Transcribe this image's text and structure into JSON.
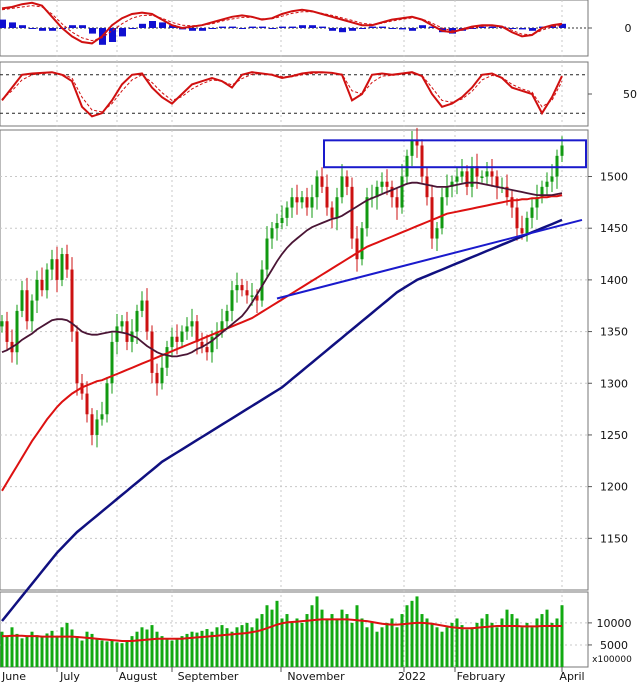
{
  "chart_data": [
    {
      "panel": "macd",
      "type": "bar",
      "y_tick_labels": [
        "0"
      ],
      "ylim": [
        -1,
        1
      ],
      "histogram_color": "#1010d0",
      "signal_color": "#d01010",
      "x": [
        0,
        10,
        20,
        30,
        40,
        50,
        60,
        70,
        80,
        90,
        100,
        110,
        120,
        130,
        140,
        150,
        160,
        170,
        180,
        190,
        200,
        210,
        220,
        230,
        240,
        250,
        260,
        270,
        280,
        290,
        300,
        310,
        320,
        330,
        340,
        350,
        360,
        370,
        380,
        390,
        400,
        410,
        420,
        430,
        440,
        450,
        460,
        470,
        480,
        490,
        500,
        510,
        520,
        530,
        540,
        550,
        560
      ],
      "histogram": [
        0.3,
        0.2,
        0.1,
        0,
        -0.1,
        -0.1,
        0,
        0.1,
        0.1,
        -0.2,
        -0.6,
        -0.5,
        -0.3,
        0,
        0.15,
        0.25,
        0.2,
        0.1,
        -0.05,
        -0.1,
        -0.1,
        0,
        0.05,
        0.05,
        0,
        0.05,
        0.05,
        0,
        0.05,
        0.05,
        0.1,
        0.1,
        0.05,
        -0.1,
        -0.15,
        -0.1,
        0,
        0.05,
        0.05,
        0,
        -0.05,
        -0.1,
        0.1,
        0.05,
        -0.15,
        -0.2,
        -0.1,
        0,
        0.05,
        0.05,
        0.05,
        0,
        -0.05,
        -0.1,
        0.05,
        0.1,
        0.15
      ],
      "macd_line": [
        0.7,
        0.75,
        0.85,
        0.9,
        0.8,
        0.4,
        0,
        -0.3,
        -0.5,
        -0.55,
        -0.3,
        0.1,
        0.35,
        0.5,
        0.55,
        0.5,
        0.3,
        0.1,
        0,
        0.05,
        0.1,
        0.2,
        0.3,
        0.4,
        0.45,
        0.4,
        0.3,
        0.35,
        0.5,
        0.6,
        0.65,
        0.6,
        0.5,
        0.4,
        0.3,
        0.2,
        0.1,
        0.1,
        0.2,
        0.3,
        0.35,
        0.4,
        0.3,
        0.1,
        -0.1,
        -0.15,
        -0.05,
        0.05,
        0.1,
        0.1,
        0.05,
        -0.15,
        -0.3,
        -0.25,
        0,
        0.1,
        0.15
      ],
      "signal_line": [
        0.65,
        0.7,
        0.75,
        0.8,
        0.75,
        0.5,
        0.15,
        -0.15,
        -0.35,
        -0.45,
        -0.35,
        -0.1,
        0.15,
        0.35,
        0.45,
        0.45,
        0.35,
        0.2,
        0.1,
        0.08,
        0.1,
        0.15,
        0.25,
        0.32,
        0.38,
        0.38,
        0.33,
        0.33,
        0.42,
        0.52,
        0.58,
        0.58,
        0.52,
        0.45,
        0.36,
        0.27,
        0.17,
        0.13,
        0.17,
        0.25,
        0.31,
        0.36,
        0.32,
        0.18,
        0,
        -0.1,
        -0.08,
        0,
        0.06,
        0.08,
        0.06,
        -0.08,
        -0.22,
        -0.24,
        -0.08,
        0.04,
        0.1
      ]
    },
    {
      "panel": "oscillator",
      "type": "line",
      "y_tick_labels": [
        "50"
      ],
      "ylim": [
        0,
        100
      ],
      "reference_levels": [
        80,
        20
      ],
      "series_color": "#d01010",
      "x": [
        0,
        10,
        20,
        30,
        40,
        50,
        60,
        70,
        80,
        90,
        100,
        110,
        120,
        130,
        140,
        150,
        160,
        170,
        180,
        190,
        200,
        210,
        220,
        230,
        240,
        250,
        260,
        270,
        280,
        290,
        300,
        310,
        320,
        330,
        340,
        350,
        360,
        370,
        380,
        390,
        400,
        410,
        420,
        430,
        440,
        450,
        460,
        470,
        480,
        490,
        500,
        510,
        520,
        530,
        540,
        550,
        560
      ],
      "values": [
        40,
        60,
        80,
        82,
        83,
        84,
        80,
        70,
        30,
        15,
        20,
        40,
        65,
        80,
        82,
        60,
        45,
        35,
        50,
        65,
        70,
        75,
        70,
        60,
        80,
        84,
        82,
        80,
        75,
        78,
        82,
        84,
        84,
        83,
        80,
        40,
        50,
        80,
        82,
        80,
        82,
        84,
        78,
        50,
        30,
        35,
        45,
        60,
        80,
        82,
        75,
        60,
        55,
        50,
        20,
        45,
        78
      ],
      "signal": [
        42,
        55,
        72,
        80,
        82,
        83,
        81,
        75,
        45,
        25,
        22,
        35,
        55,
        72,
        80,
        68,
        52,
        40,
        46,
        58,
        66,
        72,
        70,
        64,
        74,
        81,
        82,
        81,
        77,
        77,
        80,
        82,
        83,
        83,
        81,
        55,
        50,
        68,
        78,
        79,
        81,
        82,
        79,
        60,
        40,
        37,
        42,
        54,
        72,
        79,
        76,
        65,
        58,
        53,
        30,
        40,
        70
      ]
    },
    {
      "panel": "price",
      "type": "line",
      "x_tick_labels": [
        "June",
        "July",
        "August",
        "September",
        "November",
        "2022",
        "February",
        "April"
      ],
      "y_tick_labels": [
        "1500",
        "1450",
        "1400",
        "1350",
        "1300",
        "1250",
        "1200",
        "1150"
      ],
      "ylim": [
        1100,
        1545
      ],
      "colors": {
        "up": "#119911",
        "down": "#cc1111",
        "ma_short": "#4a1535",
        "ma_mid": "#dd1111",
        "ma_long": "#101080",
        "annotations": "#1a1acc"
      },
      "x": [
        0,
        5,
        10,
        15,
        20,
        25,
        30,
        35,
        40,
        45,
        50,
        55,
        60,
        65,
        70,
        75,
        80,
        85,
        90,
        95,
        100,
        105,
        110,
        115,
        120,
        125,
        130,
        135,
        140,
        145,
        150,
        155,
        160,
        165,
        170,
        175,
        180,
        185,
        190,
        195,
        200,
        205,
        210,
        215,
        220,
        225,
        230,
        235,
        240,
        245,
        250,
        255,
        260,
        265,
        270,
        275,
        280,
        285,
        290,
        295,
        300,
        305,
        310,
        315,
        320,
        325,
        330,
        335,
        340,
        345,
        350,
        355,
        360,
        365,
        370,
        375,
        380,
        385,
        390,
        395,
        400,
        405,
        410,
        415,
        420,
        425,
        430,
        435,
        440,
        445,
        450,
        455,
        460,
        465,
        470,
        475,
        480,
        485,
        490,
        495,
        500,
        505,
        510,
        515,
        520,
        525,
        530,
        535,
        540,
        545,
        550,
        555,
        560
      ],
      "close": [
        1360,
        1340,
        1330,
        1370,
        1390,
        1360,
        1380,
        1400,
        1390,
        1410,
        1420,
        1400,
        1425,
        1410,
        1350,
        1300,
        1290,
        1270,
        1250,
        1265,
        1270,
        1300,
        1340,
        1355,
        1360,
        1340,
        1350,
        1370,
        1380,
        1350,
        1310,
        1300,
        1315,
        1335,
        1345,
        1340,
        1350,
        1355,
        1360,
        1340,
        1335,
        1330,
        1345,
        1350,
        1360,
        1370,
        1390,
        1395,
        1390,
        1385,
        1385,
        1380,
        1410,
        1440,
        1450,
        1455,
        1460,
        1470,
        1480,
        1475,
        1480,
        1470,
        1480,
        1500,
        1490,
        1470,
        1460,
        1480,
        1500,
        1490,
        1440,
        1420,
        1450,
        1480,
        1480,
        1490,
        1495,
        1490,
        1480,
        1470,
        1500,
        1520,
        1535,
        1530,
        1500,
        1480,
        1440,
        1450,
        1480,
        1490,
        1495,
        1500,
        1505,
        1490,
        1510,
        1500,
        1500,
        1505,
        1500,
        1490,
        1490,
        1480,
        1470,
        1450,
        1445,
        1460,
        1470,
        1480,
        1490,
        1495,
        1500,
        1520,
        1530
      ],
      "ma_short": [
        1330,
        1332,
        1335,
        1338,
        1342,
        1345,
        1348,
        1352,
        1355,
        1358,
        1361,
        1362,
        1362,
        1361,
        1358,
        1354,
        1350,
        1348,
        1347,
        1347,
        1348,
        1349,
        1350,
        1350,
        1349,
        1348,
        1346,
        1344,
        1340,
        1336,
        1333,
        1330,
        1328,
        1327,
        1326,
        1326,
        1327,
        1328,
        1330,
        1333,
        1335,
        1338,
        1341,
        1345,
        1349,
        1353,
        1357,
        1361,
        1365,
        1371,
        1378,
        1386,
        1394,
        1402,
        1410,
        1418,
        1425,
        1431,
        1436,
        1440,
        1444,
        1448,
        1451,
        1453,
        1455,
        1457,
        1459,
        1460,
        1462,
        1465,
        1468,
        1471,
        1474,
        1477,
        1479,
        1481,
        1483,
        1485,
        1487,
        1489,
        1491,
        1493,
        1494,
        1494,
        1493,
        1492,
        1491,
        1490,
        1490,
        1490,
        1491,
        1492,
        1493,
        1494,
        1494,
        1494,
        1493,
        1492,
        1491,
        1490,
        1489,
        1488,
        1487,
        1486,
        1485,
        1484,
        1483,
        1482,
        1482,
        1482,
        1482,
        1483,
        1484
      ],
      "ma_mid": [
        1196,
        1204,
        1212,
        1220,
        1228,
        1236,
        1244,
        1251,
        1258,
        1265,
        1271,
        1277,
        1282,
        1286,
        1290,
        1293,
        1296,
        1298,
        1300,
        1302,
        1303,
        1305,
        1307,
        1309,
        1311,
        1313,
        1315,
        1317,
        1319,
        1321,
        1323,
        1325,
        1327,
        1329,
        1331,
        1333,
        1335,
        1337,
        1339,
        1341,
        1343,
        1345,
        1347,
        1349,
        1351,
        1353,
        1355,
        1357,
        1359,
        1361,
        1363,
        1366,
        1369,
        1372,
        1375,
        1378,
        1381,
        1384,
        1387,
        1390,
        1393,
        1396,
        1399,
        1402,
        1405,
        1408,
        1411,
        1414,
        1417,
        1420,
        1423,
        1426,
        1429,
        1432,
        1434,
        1436,
        1438,
        1440,
        1442,
        1444,
        1446,
        1448,
        1450,
        1452,
        1454,
        1456,
        1458,
        1460,
        1462,
        1464,
        1465,
        1466,
        1467,
        1468,
        1469,
        1470,
        1471,
        1472,
        1473,
        1474,
        1475,
        1476,
        1477,
        1477,
        1478,
        1478,
        1479,
        1479,
        1480,
        1480,
        1481,
        1481,
        1482
      ],
      "ma_long": [
        1070,
        1076,
        1082,
        1088,
        1094,
        1100,
        1106,
        1112,
        1118,
        1124,
        1130,
        1136,
        1141,
        1146,
        1151,
        1156,
        1160,
        1164,
        1168,
        1172,
        1176,
        1180,
        1184,
        1188,
        1192,
        1196,
        1200,
        1204,
        1208,
        1212,
        1216,
        1220,
        1224,
        1227,
        1230,
        1233,
        1236,
        1239,
        1242,
        1245,
        1248,
        1251,
        1254,
        1257,
        1260,
        1263,
        1266,
        1269,
        1272,
        1275,
        1278,
        1281,
        1284,
        1287,
        1290,
        1293,
        1296,
        1300,
        1304,
        1308,
        1312,
        1316,
        1320,
        1324,
        1328,
        1332,
        1336,
        1340,
        1344,
        1348,
        1352,
        1356,
        1360,
        1364,
        1368,
        1372,
        1376,
        1380,
        1384,
        1388,
        1391,
        1394,
        1397,
        1400,
        1402,
        1404,
        1406,
        1408,
        1410,
        1412,
        1414,
        1416,
        1418,
        1420,
        1422,
        1424,
        1426,
        1428,
        1430,
        1432,
        1434,
        1436,
        1438,
        1440,
        1442,
        1444,
        1446,
        1448,
        1450,
        1452,
        1454,
        1456,
        1458
      ],
      "trendline": {
        "from": [
          275,
          1382
        ],
        "to": [
          580,
          1458
        ]
      },
      "resistance_box": {
        "x_from": 322,
        "x_to": 584,
        "y_low": 1509,
        "y_high": 1535
      }
    },
    {
      "panel": "volume",
      "type": "bar",
      "y_tick_labels": [
        "10000",
        "5000"
      ],
      "y_multiplier_label": "x100000",
      "bar_color": "#11aa11",
      "ma_color": "#dd1111",
      "ylim": [
        0,
        17000
      ],
      "x": [
        0,
        5,
        10,
        15,
        20,
        25,
        30,
        35,
        40,
        45,
        50,
        55,
        60,
        65,
        70,
        75,
        80,
        85,
        90,
        95,
        100,
        105,
        110,
        115,
        120,
        125,
        130,
        135,
        140,
        145,
        150,
        155,
        160,
        165,
        170,
        175,
        180,
        185,
        190,
        195,
        200,
        205,
        210,
        215,
        220,
        225,
        230,
        235,
        240,
        245,
        250,
        255,
        260,
        265,
        270,
        275,
        280,
        285,
        290,
        295,
        300,
        305,
        310,
        315,
        320,
        325,
        330,
        335,
        340,
        345,
        350,
        355,
        360,
        365,
        370,
        375,
        380,
        385,
        390,
        395,
        400,
        405,
        410,
        415,
        420,
        425,
        430,
        435,
        440,
        445,
        450,
        455,
        460,
        465,
        470,
        475,
        480,
        485,
        490,
        495,
        500,
        505,
        510,
        515,
        520,
        525,
        530,
        535,
        540,
        545,
        550,
        555,
        560
      ],
      "values": [
        8000,
        7000,
        9000,
        7500,
        6500,
        7000,
        8000,
        7200,
        6800,
        7600,
        8200,
        7000,
        9000,
        10000,
        8500,
        7000,
        6000,
        8000,
        7500,
        6500,
        6000,
        5800,
        6200,
        5600,
        5400,
        6000,
        7000,
        8000,
        9000,
        8500,
        9500,
        8000,
        7000,
        6500,
        6000,
        6400,
        7000,
        7500,
        8000,
        7800,
        8200,
        8600,
        8000,
        9000,
        9500,
        8800,
        8000,
        9000,
        9500,
        10000,
        9000,
        11000,
        12000,
        14000,
        13000,
        15000,
        11000,
        12000,
        10000,
        11000,
        10000,
        12000,
        14000,
        16000,
        13000,
        11000,
        12000,
        11000,
        13000,
        12000,
        10000,
        14000,
        11000,
        9000,
        10000,
        8000,
        9000,
        10000,
        11000,
        9000,
        12000,
        14000,
        15000,
        16000,
        12000,
        11000,
        10000,
        9000,
        8000,
        9000,
        10000,
        11000,
        9500,
        8500,
        9000,
        10000,
        11000,
        12000,
        10000,
        9000,
        11000,
        13000,
        12000,
        11000,
        9000,
        10000,
        9000,
        11000,
        12000,
        13000,
        10000,
        11000,
        14000
      ],
      "ma": [
        7000,
        7000,
        7100,
        7100,
        7100,
        7000,
        7000,
        7000,
        6900,
        6900,
        6900,
        6900,
        6900,
        6900,
        6900,
        6800,
        6700,
        6600,
        6500,
        6400,
        6300,
        6200,
        6100,
        6000,
        5900,
        5900,
        5900,
        6000,
        6100,
        6200,
        6300,
        6400,
        6400,
        6400,
        6400,
        6400,
        6400,
        6500,
        6600,
        6700,
        6800,
        6900,
        7000,
        7100,
        7200,
        7300,
        7400,
        7500,
        7600,
        7700,
        7900,
        8100,
        8400,
        8800,
        9200,
        9600,
        9900,
        10100,
        10200,
        10300,
        10400,
        10500,
        10600,
        10700,
        10800,
        10800,
        10800,
        10800,
        10800,
        10800,
        10700,
        10600,
        10500,
        10400,
        10200,
        10000,
        9800,
        9700,
        9600,
        9600,
        9700,
        9800,
        9900,
        10000,
        10000,
        9900,
        9800,
        9600,
        9400,
        9200,
        9000,
        8900,
        8800,
        8800,
        8800,
        8900,
        9000,
        9100,
        9200,
        9300,
        9300,
        9300,
        9300,
        9300,
        9200,
        9200,
        9200,
        9200,
        9300,
        9300,
        9300,
        9300,
        9300
      ]
    }
  ]
}
